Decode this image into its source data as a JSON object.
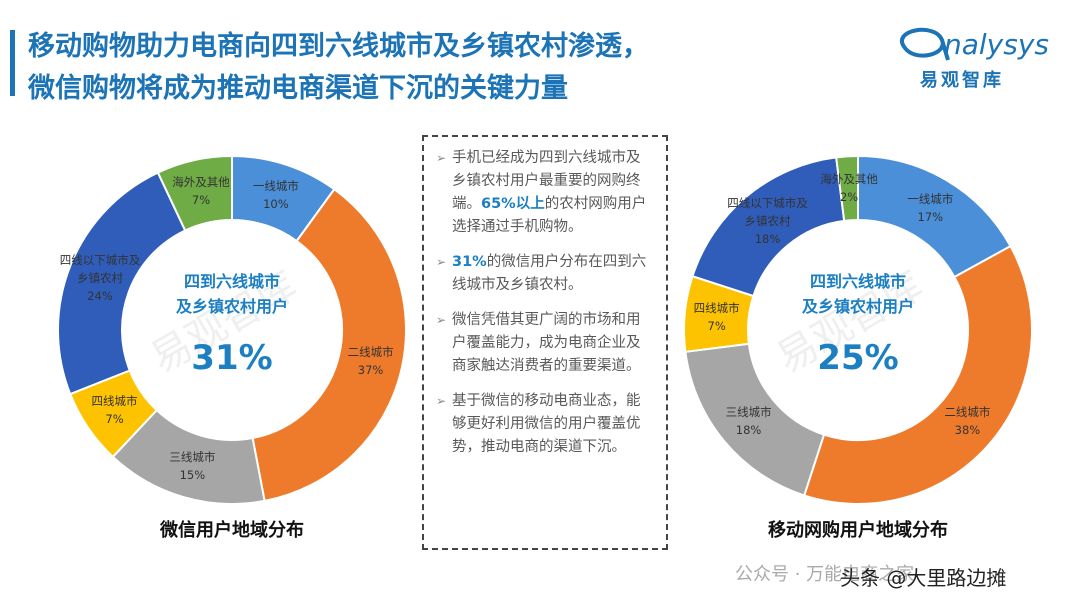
{
  "header": {
    "title_lines": [
      "移动购物助力电商向四到六线城市及乡镇农村渗透，",
      "微信购物将成为推动电商渠道下沉的关键力量"
    ],
    "logo_text": "nalysys",
    "logo_subtext": "易观智库"
  },
  "watermark": "易观智库",
  "chart_data": [
    {
      "type": "donut",
      "title": "微信用户地域分布",
      "center_lines": [
        "四到六线城市",
        "及乡镇农村用户"
      ],
      "center_value": "31%",
      "categories": [
        "一线城市",
        "二线城市",
        "三线城市",
        "四线城市",
        "四线以下城市及乡镇农村",
        "海外及其他"
      ],
      "values": [
        10,
        37,
        15,
        7,
        24,
        7
      ],
      "value_labels": [
        "10%",
        "37%",
        "15%",
        "7%",
        "24%",
        "7%"
      ],
      "colors": [
        "#4a8fd8",
        "#ee7b2c",
        "#a6a6a6",
        "#fdc300",
        "#2f5db9",
        "#6fac46"
      ]
    },
    {
      "type": "donut",
      "title": "移动网购用户地域分布",
      "center_lines": [
        "四到六线城市",
        "及乡镇农村用户"
      ],
      "center_value": "25%",
      "categories": [
        "一线城市",
        "二线城市",
        "三线城市",
        "四线城市",
        "四线以下城市及乡镇农村",
        "海外及其他"
      ],
      "values": [
        17,
        38,
        18,
        7,
        18,
        2
      ],
      "value_labels": [
        "17%",
        "38%",
        "18%",
        "7%",
        "18%",
        "2%"
      ],
      "colors": [
        "#4a8fd8",
        "#ee7b2c",
        "#a6a6a6",
        "#fdc300",
        "#2f5db9",
        "#6fac46"
      ]
    }
  ],
  "bullets": [
    [
      {
        "text": "手机已经成为四到六线城市及乡镇农村用户最重要的网购终端。",
        "bold": false
      },
      {
        "text": "65%以上",
        "bold": true
      },
      {
        "text": "的农村网购用户选择通过手机购物。",
        "bold": false
      }
    ],
    [
      {
        "text": "31%",
        "bold": true
      },
      {
        "text": "的微信用户分布在四到六线城市及乡镇农村。",
        "bold": false
      }
    ],
    [
      {
        "text": "微信凭借其更广阔的市场和用户覆盖能力，成为电商企业及商家触达消费者的重要渠道。",
        "bold": false
      }
    ],
    [
      {
        "text": "基于微信的移动电商业态，能够更好利用微信的用户覆盖优势，推动电商的渠道下沉。",
        "bold": false
      }
    ]
  ],
  "footer": {
    "account": "公众号 · 万能电商之家",
    "source": "头条 @大里路边摊"
  }
}
